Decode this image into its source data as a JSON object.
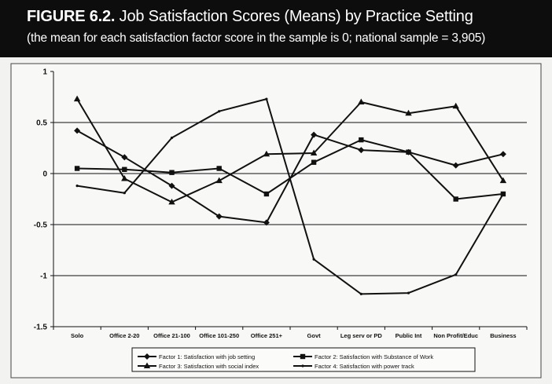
{
  "header": {
    "figure_label": "FIGURE 6.2.",
    "title": "Job Satisfaction Scores (Means) by Practice Setting",
    "subtitle": "(the mean for each satisfaction factor score in the sample is 0; national sample = 3,905)"
  },
  "chart_data": {
    "type": "line",
    "title": "Job Satisfaction Scores (Means) by Practice Setting",
    "xlabel": "",
    "ylabel": "",
    "ylim": [
      -1.5,
      1
    ],
    "yticks": [
      {
        "value": 1,
        "label": "1"
      },
      {
        "value": 0.5,
        "label": "0.5"
      },
      {
        "value": 0,
        "label": "0"
      },
      {
        "value": -0.5,
        "label": "-0.5"
      },
      {
        "value": -1,
        "label": "-1"
      },
      {
        "value": -1.5,
        "label": "-1.5"
      }
    ],
    "grid": true,
    "categories": [
      "Solo",
      "Office 2-20",
      "Office 21-100",
      "Office 101-250",
      "Office 251+",
      "Govt",
      "Leg serv or PD",
      "Public Int",
      "Non Profit/Educ",
      "Business"
    ],
    "series": [
      {
        "name": "Factor 1: Satisfaction with job setting",
        "marker": "diamond",
        "values": [
          0.42,
          0.16,
          -0.12,
          -0.42,
          -0.48,
          0.38,
          0.23,
          0.21,
          0.08,
          0.19
        ]
      },
      {
        "name": "Factor 2: Satisfaction with Substance of Work",
        "marker": "square",
        "values": [
          0.05,
          0.04,
          0.01,
          0.05,
          -0.2,
          0.11,
          0.33,
          0.21,
          -0.25,
          -0.2
        ]
      },
      {
        "name": "Factor 3: Satisfaction with social index",
        "marker": "triangle",
        "values": [
          0.73,
          -0.05,
          -0.28,
          -0.07,
          0.19,
          0.2,
          0.7,
          0.59,
          0.66,
          -0.07
        ]
      },
      {
        "name": "Factor 4: Satisfaction with power track",
        "marker": "none",
        "values": [
          -0.12,
          -0.19,
          0.35,
          0.61,
          0.73,
          -0.84,
          -1.18,
          -1.17,
          -0.99,
          -0.2
        ]
      }
    ],
    "legend_position": "bottom"
  }
}
